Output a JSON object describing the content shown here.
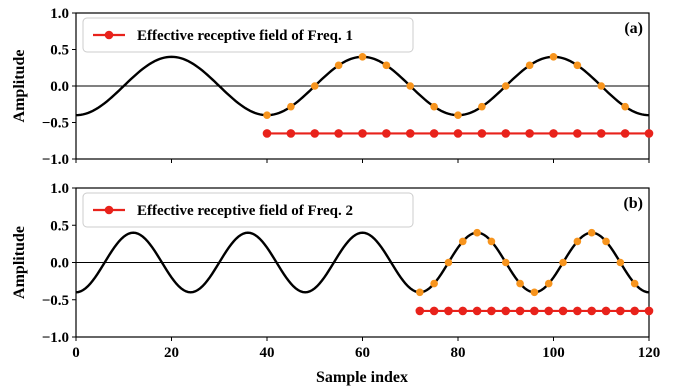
{
  "colors": {
    "signal": "#000000",
    "samples": "#f7941d",
    "receptive_field": "#e8221b",
    "zero_line": "#000000"
  },
  "shared_xlabel": "Sample index",
  "chart_data": [
    {
      "type": "line",
      "panel_label": "(a)",
      "ylabel": "Amplitude",
      "xlim": [
        0,
        120
      ],
      "ylim": [
        -1.0,
        1.0
      ],
      "x_ticks": [
        0,
        20,
        40,
        60,
        80,
        100,
        120
      ],
      "x_tick_labels": [],
      "y_ticks": [
        -1.0,
        -0.5,
        0.0,
        0.5,
        1.0
      ],
      "y_tick_labels": [
        "−1.0",
        "−0.5",
        "0.0",
        "0.5",
        "1.0"
      ],
      "legend": {
        "label": "Effective receptive field of Freq. 1",
        "position": "top-left"
      },
      "series": [
        {
          "kind": "signal",
          "function": "-0.4*cos(2*pi*x/40)",
          "x_range": [
            0,
            120
          ],
          "amplitude": 0.4,
          "period": 40
        },
        {
          "kind": "samples",
          "x": [
            40,
            45,
            50,
            55,
            60,
            65,
            70,
            75,
            80,
            85,
            90,
            95,
            100,
            105,
            110,
            115
          ],
          "y": [
            -0.4,
            -0.283,
            0.0,
            0.283,
            0.4,
            0.283,
            0.0,
            -0.283,
            -0.4,
            -0.283,
            0.0,
            0.283,
            0.4,
            0.283,
            0.0,
            -0.283
          ]
        },
        {
          "kind": "receptive_field",
          "name": "Effective receptive field of Freq. 1",
          "x": [
            40,
            45,
            50,
            55,
            60,
            65,
            70,
            75,
            80,
            85,
            90,
            95,
            100,
            105,
            110,
            115,
            120
          ],
          "y_level": -0.65
        }
      ]
    },
    {
      "type": "line",
      "panel_label": "(b)",
      "ylabel": "Amplitude",
      "xlabel": "Sample index",
      "xlim": [
        0,
        120
      ],
      "ylim": [
        -1.0,
        1.0
      ],
      "x_ticks": [
        0,
        20,
        40,
        60,
        80,
        100,
        120
      ],
      "x_tick_labels": [
        "0",
        "20",
        "40",
        "60",
        "80",
        "100",
        "120"
      ],
      "y_ticks": [
        -1.0,
        -0.5,
        0.0,
        0.5,
        1.0
      ],
      "y_tick_labels": [
        "−1.0",
        "−0.5",
        "0.0",
        "0.5",
        "1.0"
      ],
      "legend": {
        "label": "Effective receptive field of Freq. 2",
        "position": "top-left"
      },
      "series": [
        {
          "kind": "signal",
          "function": "-0.4*cos(2*pi*x/24)",
          "x_range": [
            0,
            120
          ],
          "amplitude": 0.4,
          "period": 24
        },
        {
          "kind": "samples",
          "x": [
            72,
            75,
            78,
            81,
            84,
            87,
            90,
            93,
            96,
            99,
            102,
            105,
            108,
            111,
            114,
            117
          ],
          "y": [
            -0.4,
            -0.283,
            0.0,
            0.283,
            0.4,
            0.283,
            0.0,
            -0.283,
            -0.4,
            -0.283,
            0.0,
            0.283,
            0.4,
            0.283,
            0.0,
            -0.283
          ]
        },
        {
          "kind": "receptive_field",
          "name": "Effective receptive field of Freq. 2",
          "x": [
            72,
            75,
            78,
            81,
            84,
            87,
            90,
            93,
            96,
            99,
            102,
            105,
            108,
            111,
            114,
            117,
            120
          ],
          "y_level": -0.65
        }
      ]
    }
  ]
}
